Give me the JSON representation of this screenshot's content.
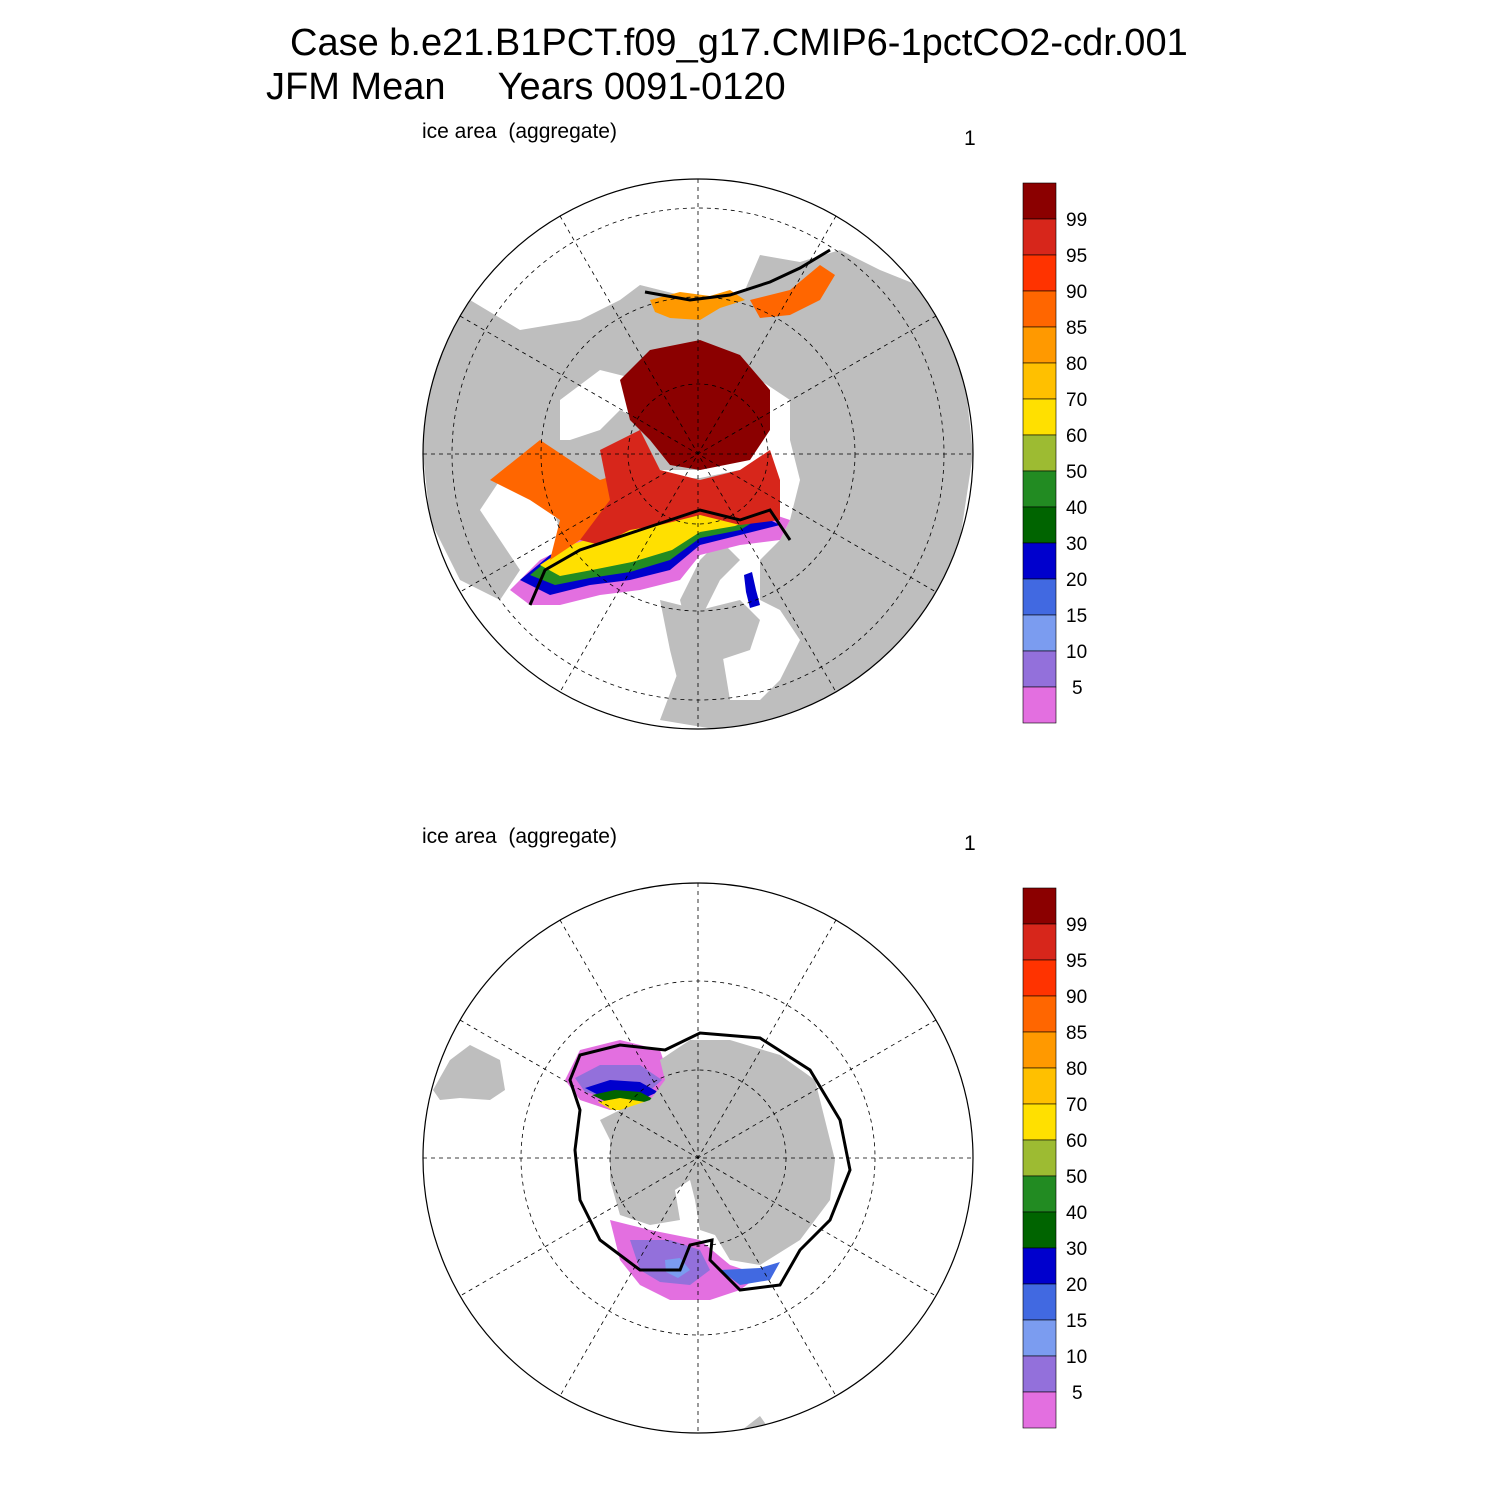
{
  "title": {
    "line1": "Case b.e21.B1PCT.f09_g17.CMIP6-1pctCO2-cdr.001",
    "line2": "JFM Mean     Years 0091-0120"
  },
  "panels": [
    {
      "label": "ice area  (aggregate)",
      "number": "1",
      "hemisphere": "north"
    },
    {
      "label": "ice area  (aggregate)",
      "number": "1",
      "hemisphere": "south"
    }
  ],
  "colorbar": {
    "labels": [
      "99",
      "95",
      "90",
      "85",
      "80",
      "70",
      "60",
      "50",
      "40",
      "30",
      "20",
      "15",
      "10",
      "5"
    ],
    "colors": [
      "#8b0000",
      "#d7261b",
      "#ff3300",
      "#ff6600",
      "#ff9900",
      "#ffc000",
      "#ffe000",
      "#9dbb32",
      "#228b22",
      "#006400",
      "#0000cd",
      "#4169e1",
      "#7b9cf0",
      "#9370db",
      "#e36fe0"
    ]
  },
  "map_colors": {
    "land": "#bebebe",
    "ocean": "#ffffff",
    "grid": "#000000"
  }
}
